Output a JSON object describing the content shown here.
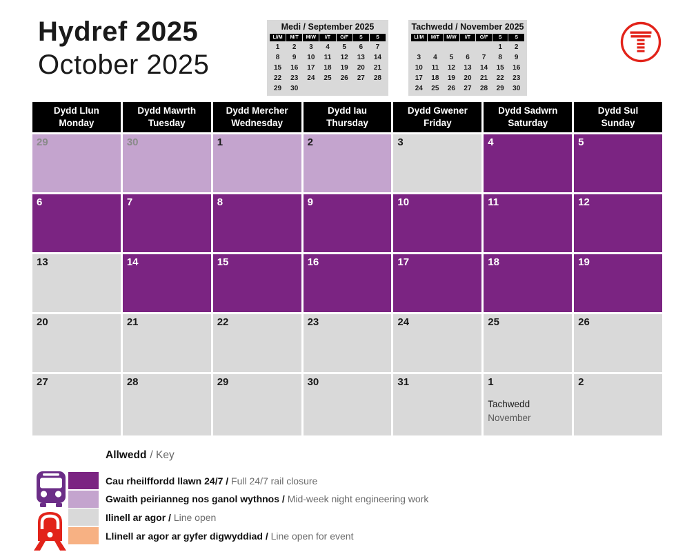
{
  "colors": {
    "closure": "#7B2482",
    "engineering": "#C4A4CE",
    "open": "#D9D9D9",
    "event": "#F7B183",
    "header_bg": "#000000",
    "logo_red": "#E2231A",
    "bus_purple": "#6B2D87",
    "train_red": "#E2231A"
  },
  "title": {
    "welsh": "Hydref 2025",
    "english": "October 2025"
  },
  "mini_calendars": [
    {
      "title": "Medi / September 2025",
      "day_headers": [
        "Ll/M",
        "M/T",
        "M/W",
        "I/T",
        "G/F",
        "S",
        "S"
      ],
      "weeks": [
        [
          "1",
          "2",
          "3",
          "4",
          "5",
          "6",
          "7"
        ],
        [
          "8",
          "9",
          "10",
          "11",
          "12",
          "13",
          "14"
        ],
        [
          "15",
          "16",
          "17",
          "18",
          "19",
          "20",
          "21"
        ],
        [
          "22",
          "23",
          "24",
          "25",
          "26",
          "27",
          "28"
        ],
        [
          "29",
          "30",
          "",
          "",
          "",
          "",
          ""
        ]
      ]
    },
    {
      "title": "Tachwedd / November 2025",
      "day_headers": [
        "Ll/M",
        "M/T",
        "M/W",
        "I/T",
        "G/F",
        "S",
        "S"
      ],
      "weeks": [
        [
          "",
          "",
          "",
          "",
          "",
          "1",
          "2"
        ],
        [
          "3",
          "4",
          "5",
          "6",
          "7",
          "8",
          "9"
        ],
        [
          "10",
          "11",
          "12",
          "13",
          "14",
          "15",
          "16"
        ],
        [
          "17",
          "18",
          "19",
          "20",
          "21",
          "22",
          "23"
        ],
        [
          "24",
          "25",
          "26",
          "27",
          "28",
          "29",
          "30"
        ]
      ]
    }
  ],
  "calendar": {
    "day_headers": [
      {
        "welsh": "Dydd Llun",
        "english": "Monday"
      },
      {
        "welsh": "Dydd Mawrth",
        "english": "Tuesday"
      },
      {
        "welsh": "Dydd Mercher",
        "english": "Wednesday"
      },
      {
        "welsh": "Dydd Iau",
        "english": "Thursday"
      },
      {
        "welsh": "Dydd Gwener",
        "english": "Friday"
      },
      {
        "welsh": "Dydd Sadwrn",
        "english": "Saturday"
      },
      {
        "welsh": "Dydd Sul",
        "english": "Sunday"
      }
    ],
    "weeks": [
      [
        {
          "day": "29",
          "status": "engineering",
          "muted": true
        },
        {
          "day": "30",
          "status": "engineering",
          "muted": true
        },
        {
          "day": "1",
          "status": "engineering"
        },
        {
          "day": "2",
          "status": "engineering"
        },
        {
          "day": "3",
          "status": "open"
        },
        {
          "day": "4",
          "status": "closure"
        },
        {
          "day": "5",
          "status": "closure"
        }
      ],
      [
        {
          "day": "6",
          "status": "closure"
        },
        {
          "day": "7",
          "status": "closure"
        },
        {
          "day": "8",
          "status": "closure"
        },
        {
          "day": "9",
          "status": "closure"
        },
        {
          "day": "10",
          "status": "closure"
        },
        {
          "day": "11",
          "status": "closure"
        },
        {
          "day": "12",
          "status": "closure"
        }
      ],
      [
        {
          "day": "13",
          "status": "open"
        },
        {
          "day": "14",
          "status": "closure"
        },
        {
          "day": "15",
          "status": "closure"
        },
        {
          "day": "16",
          "status": "closure"
        },
        {
          "day": "17",
          "status": "closure"
        },
        {
          "day": "18",
          "status": "closure"
        },
        {
          "day": "19",
          "status": "closure"
        }
      ],
      [
        {
          "day": "20",
          "status": "open"
        },
        {
          "day": "21",
          "status": "open"
        },
        {
          "day": "22",
          "status": "open"
        },
        {
          "day": "23",
          "status": "open"
        },
        {
          "day": "24",
          "status": "open"
        },
        {
          "day": "25",
          "status": "open"
        },
        {
          "day": "26",
          "status": "open"
        }
      ],
      [
        {
          "day": "27",
          "status": "open"
        },
        {
          "day": "28",
          "status": "open"
        },
        {
          "day": "29",
          "status": "open"
        },
        {
          "day": "30",
          "status": "open"
        },
        {
          "day": "31",
          "status": "open"
        },
        {
          "day": "1",
          "status": "open",
          "note_welsh": "Tachwedd",
          "note_english": "November"
        },
        {
          "day": "2",
          "status": "open"
        }
      ]
    ]
  },
  "legend": {
    "title_welsh": "Allwedd",
    "title_rest": "/ Key",
    "items": [
      {
        "color": "closure",
        "welsh": "Cau rheilffordd llawn 24/7 /",
        "english": "Full 24/7 rail closure"
      },
      {
        "color": "engineering",
        "welsh": "Gwaith peirianneg nos ganol wythnos /",
        "english": "Mid-week night engineering work"
      },
      {
        "color": "open",
        "welsh": "Ilinell ar agor /",
        "english": "Line open"
      },
      {
        "color": "event",
        "welsh": "Llinell ar agor ar gyfer digwyddiad /",
        "english": "Line open for event"
      }
    ]
  },
  "logo_name": "Transport for Wales"
}
